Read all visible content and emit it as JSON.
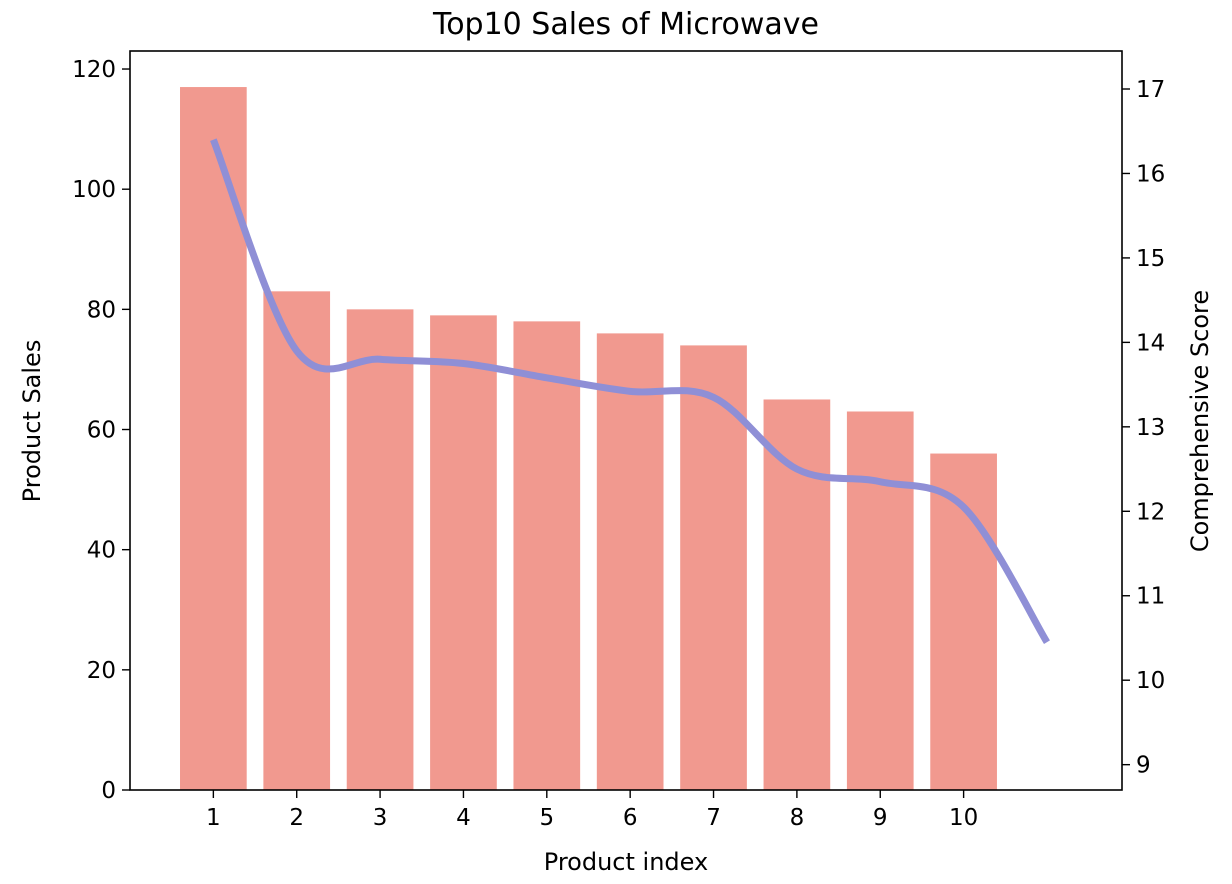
{
  "chart_data": {
    "type": "bar",
    "title": "Top10 Sales of Microwave",
    "xlabel": "Product index",
    "ylabel": "Product Sales",
    "y2label": "Comprehensive Score",
    "categories": [
      "1",
      "2",
      "3",
      "4",
      "5",
      "6",
      "7",
      "8",
      "9",
      "10"
    ],
    "series": [
      {
        "type": "bar",
        "axis": "left",
        "color": "#f1998f",
        "values": [
          117,
          83,
          80,
          79,
          78,
          76,
          74,
          65,
          63,
          56
        ]
      },
      {
        "type": "line",
        "axis": "right",
        "smooth": true,
        "color": "#8f8fd6",
        "x": [
          1,
          2,
          3,
          4,
          5,
          6,
          7,
          8,
          9,
          10,
          11
        ],
        "values": [
          16.4,
          13.9,
          13.8,
          13.75,
          13.58,
          13.42,
          13.35,
          12.5,
          12.35,
          12.05,
          10.45
        ]
      }
    ],
    "xlim": [
      0,
      11.9
    ],
    "ylim": [
      0,
      123
    ],
    "y2lim": [
      8.7,
      17.45
    ],
    "yticks": [
      0,
      20,
      40,
      60,
      80,
      100,
      120
    ],
    "y2ticks": [
      9,
      10,
      11,
      12,
      13,
      14,
      15,
      16,
      17
    ],
    "grid": false,
    "legend": "none"
  }
}
